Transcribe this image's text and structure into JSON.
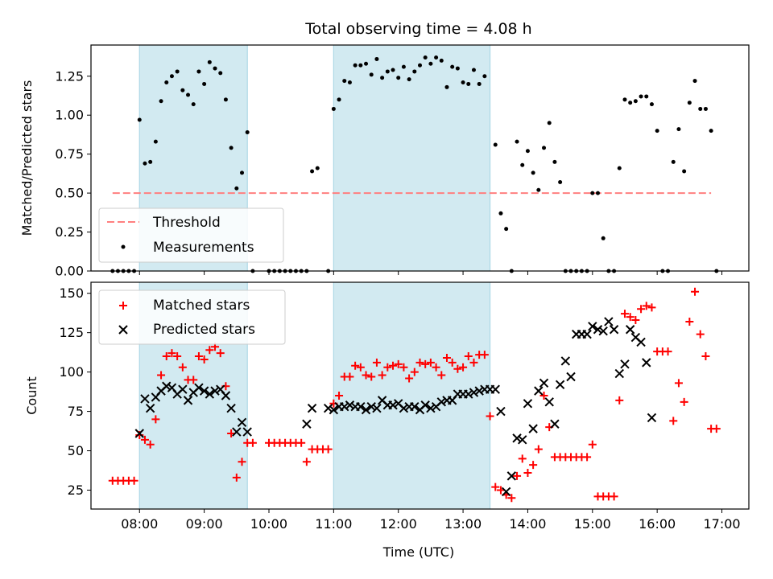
{
  "title": "Total observing time = 4.08 h",
  "xlabel": "Time (UTC)",
  "x_ticks": [
    "08:00",
    "09:00",
    "10:00",
    "11:00",
    "12:00",
    "13:00",
    "14:00",
    "15:00",
    "16:00",
    "17:00"
  ],
  "colors": {
    "band": "#add8e6",
    "threshold": "#ff7f7f",
    "matched": "#ff0000",
    "predicted": "#000000",
    "points": "#000000"
  },
  "chart_data": [
    {
      "type": "scatter",
      "ylabel": "Matched/Predicted stars",
      "xlim": [
        "07:15",
        "17:25"
      ],
      "ylim": [
        0,
        1.45
      ],
      "y_ticks": [
        "0.00",
        "0.25",
        "0.50",
        "0.75",
        "1.00",
        "1.25"
      ],
      "legend": {
        "position": "lower-left",
        "threshold_label": "Threshold",
        "measurements_label": "Measurements"
      },
      "observing_windows": [
        [
          "08:00",
          "09:40"
        ],
        [
          "11:00",
          "13:25"
        ]
      ],
      "threshold": {
        "value": 0.5,
        "x_range": [
          "07:35",
          "16:50"
        ]
      },
      "measurements": [
        [
          "07:35",
          0
        ],
        [
          "07:40",
          0
        ],
        [
          "07:45",
          0
        ],
        [
          "07:50",
          0
        ],
        [
          "07:55",
          0
        ],
        [
          "08:00",
          0.97
        ],
        [
          "08:05",
          0.69
        ],
        [
          "08:10",
          0.7
        ],
        [
          "08:15",
          0.83
        ],
        [
          "08:20",
          1.09
        ],
        [
          "08:25",
          1.21
        ],
        [
          "08:30",
          1.25
        ],
        [
          "08:35",
          1.28
        ],
        [
          "08:40",
          1.16
        ],
        [
          "08:45",
          1.13
        ],
        [
          "08:50",
          1.07
        ],
        [
          "08:55",
          1.28
        ],
        [
          "09:00",
          1.2
        ],
        [
          "09:05",
          1.34
        ],
        [
          "09:10",
          1.3
        ],
        [
          "09:15",
          1.27
        ],
        [
          "09:20",
          1.1
        ],
        [
          "09:25",
          0.79
        ],
        [
          "09:30",
          0.53
        ],
        [
          "09:35",
          0.63
        ],
        [
          "09:40",
          0.89
        ],
        [
          "09:45",
          0
        ],
        [
          "10:00",
          0
        ],
        [
          "10:05",
          0
        ],
        [
          "10:10",
          0
        ],
        [
          "10:15",
          0
        ],
        [
          "10:20",
          0
        ],
        [
          "10:25",
          0
        ],
        [
          "10:30",
          0
        ],
        [
          "10:35",
          0
        ],
        [
          "10:40",
          0.64
        ],
        [
          "10:45",
          0.66
        ],
        [
          "10:55",
          0
        ],
        [
          "11:00",
          1.04
        ],
        [
          "11:05",
          1.1
        ],
        [
          "11:10",
          1.22
        ],
        [
          "11:15",
          1.21
        ],
        [
          "11:20",
          1.32
        ],
        [
          "11:25",
          1.32
        ],
        [
          "11:30",
          1.33
        ],
        [
          "11:35",
          1.26
        ],
        [
          "11:40",
          1.36
        ],
        [
          "11:45",
          1.24
        ],
        [
          "11:50",
          1.28
        ],
        [
          "11:55",
          1.29
        ],
        [
          "12:00",
          1.24
        ],
        [
          "12:05",
          1.31
        ],
        [
          "12:10",
          1.23
        ],
        [
          "12:15",
          1.28
        ],
        [
          "12:20",
          1.32
        ],
        [
          "12:25",
          1.37
        ],
        [
          "12:30",
          1.33
        ],
        [
          "12:35",
          1.37
        ],
        [
          "12:40",
          1.35
        ],
        [
          "12:45",
          1.18
        ],
        [
          "12:50",
          1.31
        ],
        [
          "12:55",
          1.3
        ],
        [
          "13:00",
          1.21
        ],
        [
          "13:05",
          1.2
        ],
        [
          "13:10",
          1.29
        ],
        [
          "13:15",
          1.2
        ],
        [
          "13:20",
          1.25
        ],
        [
          "13:30",
          0.81
        ],
        [
          "13:35",
          0.37
        ],
        [
          "13:40",
          0.27
        ],
        [
          "13:45",
          0
        ],
        [
          "13:50",
          0.83
        ],
        [
          "13:55",
          0.68
        ],
        [
          "14:00",
          0.77
        ],
        [
          "14:05",
          0.63
        ],
        [
          "14:10",
          0.52
        ],
        [
          "14:15",
          0.79
        ],
        [
          "14:20",
          0.95
        ],
        [
          "14:25",
          0.7
        ],
        [
          "14:30",
          0.57
        ],
        [
          "14:35",
          0
        ],
        [
          "14:40",
          0
        ],
        [
          "14:45",
          0
        ],
        [
          "14:50",
          0
        ],
        [
          "14:55",
          0
        ],
        [
          "15:00",
          0.5
        ],
        [
          "15:05",
          0.5
        ],
        [
          "15:10",
          0.21
        ],
        [
          "15:15",
          0
        ],
        [
          "15:20",
          0
        ],
        [
          "15:25",
          0.66
        ],
        [
          "15:30",
          1.1
        ],
        [
          "15:35",
          1.08
        ],
        [
          "15:40",
          1.09
        ],
        [
          "15:45",
          1.12
        ],
        [
          "15:50",
          1.12
        ],
        [
          "15:55",
          1.07
        ],
        [
          "16:00",
          0.9
        ],
        [
          "16:05",
          0
        ],
        [
          "16:10",
          0
        ],
        [
          "16:15",
          0.7
        ],
        [
          "16:20",
          0.91
        ],
        [
          "16:25",
          0.64
        ],
        [
          "16:30",
          1.08
        ],
        [
          "16:35",
          1.22
        ],
        [
          "16:40",
          1.04
        ],
        [
          "16:45",
          1.04
        ],
        [
          "16:50",
          0.9
        ],
        [
          "16:55",
          0
        ]
      ]
    },
    {
      "type": "scatter",
      "ylabel": "Count",
      "xlim": [
        "07:15",
        "17:25"
      ],
      "ylim": [
        13,
        157
      ],
      "y_ticks": [
        "25",
        "50",
        "75",
        "100",
        "125",
        "150"
      ],
      "legend": {
        "position": "upper-left",
        "matched_label": "Matched stars",
        "predicted_label": "Predicted stars"
      },
      "observing_windows": [
        [
          "08:00",
          "09:40"
        ],
        [
          "11:00",
          "13:25"
        ]
      ],
      "matched": [
        [
          "07:35",
          31
        ],
        [
          "07:40",
          31
        ],
        [
          "07:45",
          31
        ],
        [
          "07:50",
          31
        ],
        [
          "07:55",
          31
        ],
        [
          "08:00",
          60
        ],
        [
          "08:05",
          57
        ],
        [
          "08:10",
          54
        ],
        [
          "08:15",
          70
        ],
        [
          "08:20",
          98
        ],
        [
          "08:25",
          110
        ],
        [
          "08:30",
          112
        ],
        [
          "08:35",
          110
        ],
        [
          "08:40",
          103
        ],
        [
          "08:45",
          95
        ],
        [
          "08:50",
          95
        ],
        [
          "08:55",
          110
        ],
        [
          "09:00",
          108
        ],
        [
          "09:05",
          114
        ],
        [
          "09:10",
          116
        ],
        [
          "09:15",
          112
        ],
        [
          "09:20",
          91
        ],
        [
          "09:25",
          61
        ],
        [
          "09:30",
          33
        ],
        [
          "09:35",
          43
        ],
        [
          "09:40",
          55
        ],
        [
          "09:45",
          55
        ],
        [
          "10:00",
          55
        ],
        [
          "10:05",
          55
        ],
        [
          "10:10",
          55
        ],
        [
          "10:15",
          55
        ],
        [
          "10:20",
          55
        ],
        [
          "10:25",
          55
        ],
        [
          "10:30",
          55
        ],
        [
          "10:35",
          43
        ],
        [
          "10:40",
          51
        ],
        [
          "10:45",
          51
        ],
        [
          "10:50",
          51
        ],
        [
          "10:55",
          51
        ],
        [
          "11:00",
          80
        ],
        [
          "11:05",
          85
        ],
        [
          "11:10",
          97
        ],
        [
          "11:15",
          97
        ],
        [
          "11:20",
          104
        ],
        [
          "11:25",
          103
        ],
        [
          "11:30",
          98
        ],
        [
          "11:35",
          97
        ],
        [
          "11:40",
          106
        ],
        [
          "11:45",
          98
        ],
        [
          "11:50",
          103
        ],
        [
          "11:55",
          104
        ],
        [
          "12:00",
          105
        ],
        [
          "12:05",
          103
        ],
        [
          "12:10",
          96
        ],
        [
          "12:15",
          100
        ],
        [
          "12:20",
          106
        ],
        [
          "12:25",
          105
        ],
        [
          "12:30",
          106
        ],
        [
          "12:35",
          103
        ],
        [
          "12:40",
          98
        ],
        [
          "12:45",
          109
        ],
        [
          "12:50",
          106
        ],
        [
          "12:55",
          102
        ],
        [
          "13:00",
          103
        ],
        [
          "13:05",
          110
        ],
        [
          "13:10",
          106
        ],
        [
          "13:15",
          111
        ],
        [
          "13:20",
          111
        ],
        [
          "13:25",
          72
        ],
        [
          "13:30",
          27
        ],
        [
          "13:35",
          25
        ],
        [
          "13:40",
          22
        ],
        [
          "13:45",
          20
        ],
        [
          "13:50",
          34
        ],
        [
          "13:55",
          45
        ],
        [
          "14:00",
          36
        ],
        [
          "14:05",
          41
        ],
        [
          "14:10",
          51
        ],
        [
          "14:15",
          85
        ],
        [
          "14:20",
          65
        ],
        [
          "14:25",
          46
        ],
        [
          "14:30",
          46
        ],
        [
          "14:35",
          46
        ],
        [
          "14:40",
          46
        ],
        [
          "14:45",
          46
        ],
        [
          "14:50",
          46
        ],
        [
          "14:55",
          46
        ],
        [
          "15:00",
          54
        ],
        [
          "15:05",
          21
        ],
        [
          "15:10",
          21
        ],
        [
          "15:15",
          21
        ],
        [
          "15:20",
          21
        ],
        [
          "15:25",
          82
        ],
        [
          "15:30",
          137
        ],
        [
          "15:35",
          135
        ],
        [
          "15:40",
          133
        ],
        [
          "15:45",
          140
        ],
        [
          "15:50",
          142
        ],
        [
          "15:55",
          141
        ],
        [
          "16:00",
          113
        ],
        [
          "16:05",
          113
        ],
        [
          "16:10",
          113
        ],
        [
          "16:15",
          69
        ],
        [
          "16:20",
          93
        ],
        [
          "16:25",
          81
        ],
        [
          "16:30",
          132
        ],
        [
          "16:35",
          151
        ],
        [
          "16:40",
          124
        ],
        [
          "16:45",
          110
        ],
        [
          "16:50",
          64
        ],
        [
          "16:55",
          64
        ]
      ],
      "predicted": [
        [
          "08:00",
          61
        ],
        [
          "08:05",
          83
        ],
        [
          "08:10",
          77
        ],
        [
          "08:15",
          84
        ],
        [
          "08:20",
          88
        ],
        [
          "08:25",
          91
        ],
        [
          "08:30",
          90
        ],
        [
          "08:35",
          86
        ],
        [
          "08:40",
          89
        ],
        [
          "08:45",
          82
        ],
        [
          "08:50",
          87
        ],
        [
          "08:55",
          90
        ],
        [
          "09:00",
          88
        ],
        [
          "09:05",
          86
        ],
        [
          "09:10",
          88
        ],
        [
          "09:15",
          89
        ],
        [
          "09:20",
          85
        ],
        [
          "09:25",
          77
        ],
        [
          "09:30",
          62
        ],
        [
          "09:35",
          68
        ],
        [
          "09:40",
          62
        ],
        [
          "10:35",
          67
        ],
        [
          "10:40",
          77
        ],
        [
          "10:55",
          77
        ],
        [
          "11:00",
          76
        ],
        [
          "11:05",
          78
        ],
        [
          "11:10",
          78
        ],
        [
          "11:15",
          79
        ],
        [
          "11:20",
          78
        ],
        [
          "11:25",
          78
        ],
        [
          "11:30",
          76
        ],
        [
          "11:35",
          78
        ],
        [
          "11:40",
          77
        ],
        [
          "11:45",
          82
        ],
        [
          "11:50",
          79
        ],
        [
          "11:55",
          79
        ],
        [
          "12:00",
          80
        ],
        [
          "12:05",
          77
        ],
        [
          "12:10",
          78
        ],
        [
          "12:15",
          78
        ],
        [
          "12:20",
          76
        ],
        [
          "12:25",
          79
        ],
        [
          "12:30",
          77
        ],
        [
          "12:35",
          78
        ],
        [
          "12:40",
          81
        ],
        [
          "12:45",
          82
        ],
        [
          "12:50",
          82
        ],
        [
          "12:55",
          86
        ],
        [
          "13:00",
          86
        ],
        [
          "13:05",
          86
        ],
        [
          "13:10",
          87
        ],
        [
          "13:15",
          88
        ],
        [
          "13:20",
          89
        ],
        [
          "13:25",
          89
        ],
        [
          "13:30",
          89
        ],
        [
          "13:35",
          75
        ],
        [
          "13:40",
          24
        ],
        [
          "13:45",
          34
        ],
        [
          "13:50",
          58
        ],
        [
          "13:55",
          57
        ],
        [
          "14:00",
          80
        ],
        [
          "14:05",
          64
        ],
        [
          "14:10",
          88
        ],
        [
          "14:15",
          93
        ],
        [
          "14:20",
          81
        ],
        [
          "14:25",
          67
        ],
        [
          "14:30",
          92
        ],
        [
          "14:35",
          107
        ],
        [
          "14:40",
          97
        ],
        [
          "14:45",
          124
        ],
        [
          "14:50",
          124
        ],
        [
          "14:55",
          124
        ],
        [
          "15:00",
          129
        ],
        [
          "15:05",
          127
        ],
        [
          "15:10",
          126
        ],
        [
          "15:15",
          132
        ],
        [
          "15:20",
          127
        ],
        [
          "15:25",
          99
        ],
        [
          "15:30",
          105
        ],
        [
          "15:35",
          127
        ],
        [
          "15:40",
          122
        ],
        [
          "15:45",
          119
        ],
        [
          "15:50",
          106
        ],
        [
          "15:55",
          71
        ]
      ]
    }
  ]
}
